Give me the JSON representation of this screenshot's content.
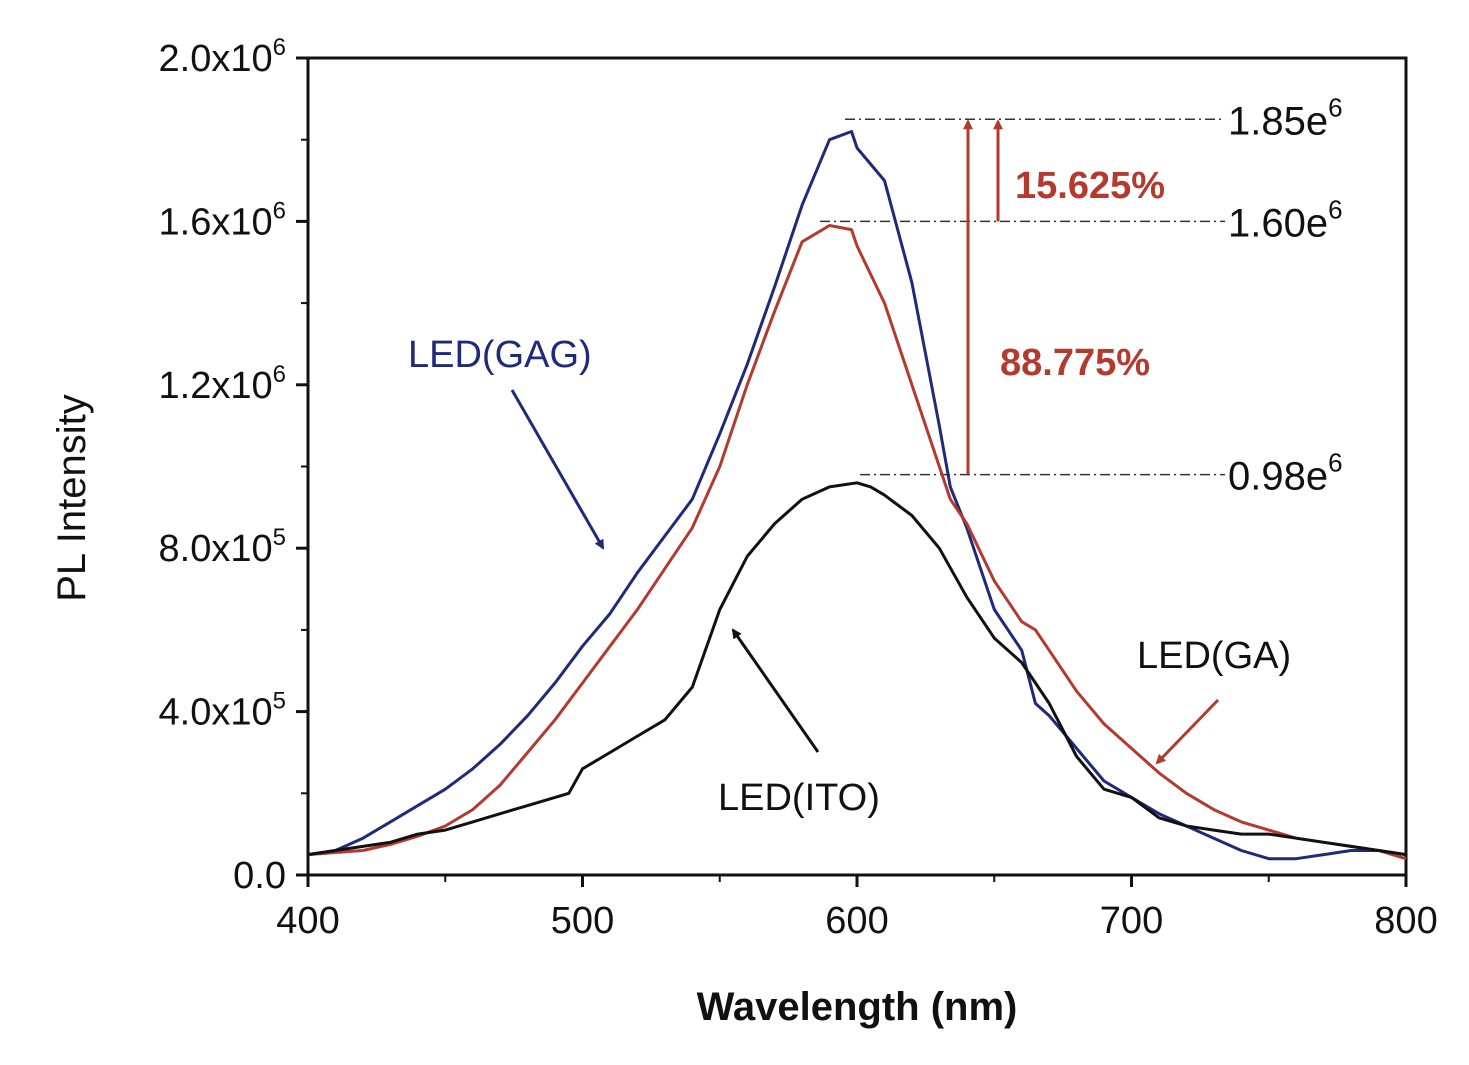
{
  "chart_data": {
    "type": "line",
    "xlabel": "Wavelength (nm)",
    "ylabel": "PL Intensity",
    "xlim": [
      400,
      800
    ],
    "ylim": [
      0,
      2000000
    ],
    "x_ticks": [
      400,
      500,
      600,
      700,
      800
    ],
    "x_tick_labels": [
      "400",
      "500",
      "600",
      "700",
      "800"
    ],
    "y_ticks": [
      {
        "value": 0,
        "mantissa": "0.0",
        "exp": ""
      },
      {
        "value": 400000,
        "mantissa": "4.0x10",
        "exp": "5"
      },
      {
        "value": 800000,
        "mantissa": "8.0x10",
        "exp": "5"
      },
      {
        "value": 1200000,
        "mantissa": "1.2x10",
        "exp": "6"
      },
      {
        "value": 1600000,
        "mantissa": "1.6x10",
        "exp": "6"
      },
      {
        "value": 2000000,
        "mantissa": "2.0x10",
        "exp": "6"
      }
    ],
    "grid": false,
    "series": [
      {
        "name": "LED(GAG)",
        "color": "#1f2a78",
        "x": [
          400,
          410,
          420,
          430,
          440,
          450,
          460,
          470,
          480,
          490,
          500,
          510,
          520,
          530,
          540,
          550,
          560,
          570,
          580,
          590,
          598,
          600,
          610,
          620,
          630,
          634,
          640,
          650,
          660,
          665,
          670,
          680,
          690,
          700,
          710,
          720,
          730,
          740,
          750,
          760,
          770,
          780,
          790,
          800
        ],
        "y": [
          50000,
          60000,
          90000,
          130000,
          170000,
          210000,
          260000,
          320000,
          390000,
          470000,
          560000,
          640000,
          740000,
          830000,
          920000,
          1080000,
          1250000,
          1440000,
          1640000,
          1800000,
          1820000,
          1780000,
          1700000,
          1450000,
          1100000,
          950000,
          850000,
          650000,
          550000,
          420000,
          390000,
          310000,
          230000,
          190000,
          150000,
          120000,
          90000,
          60000,
          40000,
          40000,
          50000,
          60000,
          60000,
          50000
        ]
      },
      {
        "name": "LED(GA)",
        "color": "#b23a2f",
        "x": [
          400,
          410,
          420,
          430,
          440,
          450,
          460,
          470,
          480,
          490,
          500,
          510,
          520,
          530,
          540,
          550,
          560,
          570,
          580,
          590,
          598,
          600,
          610,
          620,
          630,
          634,
          640,
          650,
          660,
          665,
          670,
          680,
          690,
          700,
          710,
          720,
          730,
          740,
          750,
          760,
          770,
          780,
          790,
          800
        ],
        "y": [
          50000,
          55000,
          60000,
          75000,
          95000,
          120000,
          160000,
          220000,
          300000,
          380000,
          470000,
          560000,
          650000,
          750000,
          850000,
          1000000,
          1200000,
          1380000,
          1550000,
          1590000,
          1580000,
          1540000,
          1400000,
          1200000,
          1000000,
          920000,
          860000,
          720000,
          620000,
          600000,
          550000,
          450000,
          370000,
          310000,
          250000,
          200000,
          160000,
          130000,
          110000,
          90000,
          80000,
          70000,
          60000,
          40000
        ]
      },
      {
        "name": "LED(ITO)",
        "color": "#111111",
        "x": [
          400,
          410,
          420,
          430,
          440,
          450,
          460,
          470,
          480,
          490,
          495,
          500,
          510,
          520,
          530,
          540,
          550,
          560,
          570,
          580,
          590,
          600,
          605,
          610,
          620,
          630,
          640,
          650,
          660,
          670,
          680,
          690,
          700,
          710,
          720,
          730,
          740,
          750,
          760,
          770,
          780,
          790,
          800
        ],
        "y": [
          50000,
          60000,
          70000,
          80000,
          100000,
          110000,
          130000,
          150000,
          170000,
          190000,
          200000,
          260000,
          300000,
          340000,
          380000,
          460000,
          650000,
          780000,
          860000,
          920000,
          950000,
          960000,
          950000,
          930000,
          880000,
          800000,
          680000,
          580000,
          520000,
          420000,
          290000,
          210000,
          190000,
          140000,
          120000,
          110000,
          100000,
          100000,
          90000,
          80000,
          70000,
          60000,
          50000
        ]
      }
    ],
    "series_labels": [
      {
        "text": "LED(GAG)",
        "color": "#1f2a78"
      },
      {
        "text": "LED(GA)",
        "color": "#b23a2f"
      },
      {
        "text": "LED(ITO)",
        "color": "#111111"
      }
    ],
    "reference_lines": [
      {
        "value": 1850000,
        "mantissa": "1.85e",
        "exp": "6"
      },
      {
        "value": 1600000,
        "mantissa": "1.60e",
        "exp": "6"
      },
      {
        "value": 980000,
        "mantissa": "0.98e",
        "exp": "6"
      }
    ],
    "annotations": [
      {
        "text": "15.625%",
        "from": 1600000,
        "to": 1850000,
        "color": "#b23a2f"
      },
      {
        "text": "88.775%",
        "from": 980000,
        "to": 1850000,
        "color": "#b23a2f"
      }
    ]
  }
}
